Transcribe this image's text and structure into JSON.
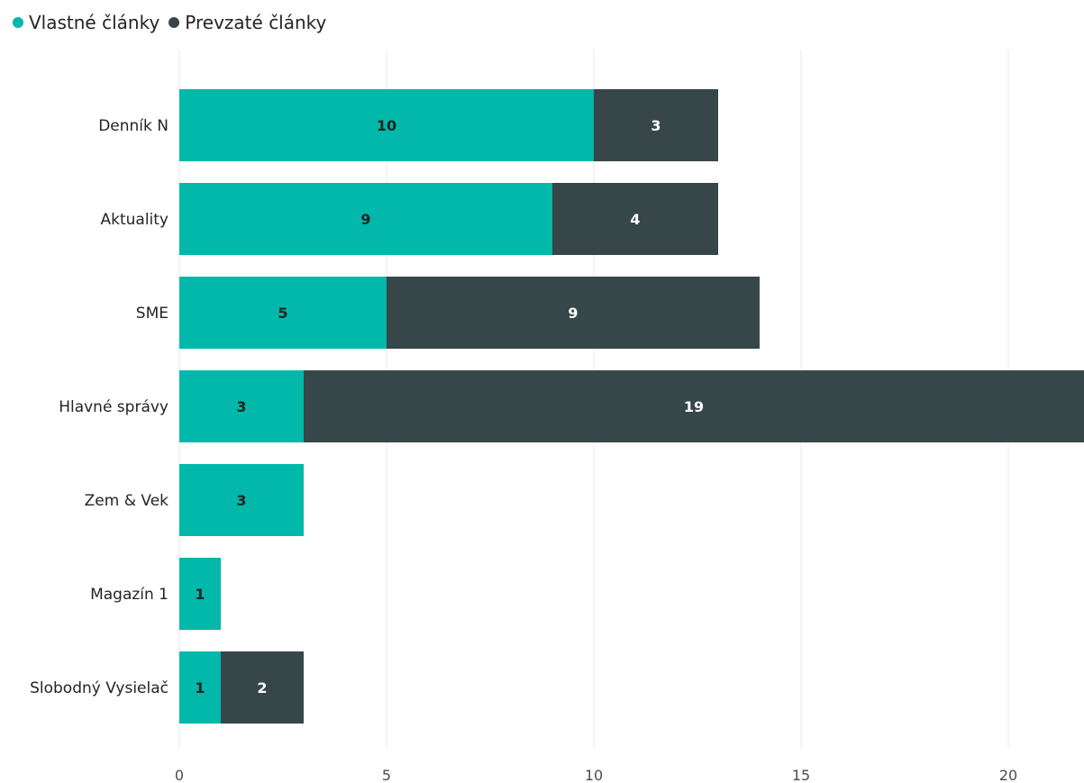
{
  "legend": [
    {
      "label": "Vlastné články",
      "color": "#01b8aa"
    },
    {
      "label": "Prevzaté články",
      "color": "#374649"
    }
  ],
  "chart_data": {
    "type": "bar",
    "orientation": "horizontal",
    "stacked": true,
    "categories": [
      "Denník N",
      "Aktuality",
      "SME",
      "Hlavné správy",
      "Zem & Vek",
      "Magazín 1",
      "Slobodný Vysielač"
    ],
    "series": [
      {
        "name": "Vlastné články",
        "values": [
          10,
          9,
          5,
          3,
          3,
          1,
          1
        ],
        "color": "#01b8aa",
        "label_color": "#252423"
      },
      {
        "name": "Prevzaté články",
        "values": [
          3,
          4,
          9,
          19,
          0,
          0,
          2
        ],
        "color": "#374649",
        "label_color": "#ffffff"
      }
    ],
    "x_ticks": [
      0,
      5,
      10,
      15,
      20
    ],
    "xlim": [
      0,
      21.8
    ],
    "grid": true,
    "legend_position": "top-left",
    "data_labels": true
  }
}
